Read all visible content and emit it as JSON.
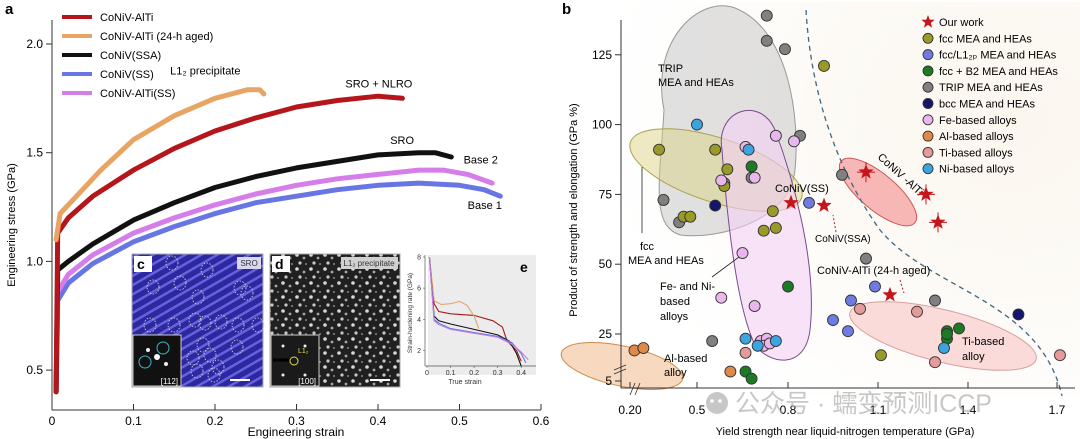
{
  "chart_data": [
    {
      "panel": "a",
      "type": "line",
      "xlabel": "Engineering strain",
      "ylabel": "Engineering stress (GPa)",
      "xlim": [
        0,
        0.6
      ],
      "ylim": [
        0.4,
        2.2
      ],
      "xticks": [
        "0",
        "0.1",
        "0.2",
        "0.3",
        "0.4",
        "0.5",
        "0.6"
      ],
      "yticks": [
        "0.5",
        "1.0",
        "1.5",
        "2.0"
      ],
      "legend_position": "top-left",
      "series": [
        {
          "name": "CoNiV-AlTi",
          "color": "#b5161b",
          "points": [
            [
              0.005,
              0.4
            ],
            [
              0.007,
              1.13
            ],
            [
              0.02,
              1.2
            ],
            [
              0.05,
              1.3
            ],
            [
              0.1,
              1.42
            ],
            [
              0.15,
              1.52
            ],
            [
              0.2,
              1.6
            ],
            [
              0.25,
              1.66
            ],
            [
              0.3,
              1.71
            ],
            [
              0.35,
              1.74
            ],
            [
              0.4,
              1.76
            ],
            [
              0.43,
              1.75
            ]
          ],
          "annotation": "SRO + NLRO"
        },
        {
          "name": "CoNiV-AlTi (24-h aged)",
          "color": "#e8a462",
          "points": [
            [
              0.005,
              1.1
            ],
            [
              0.01,
              1.22
            ],
            [
              0.03,
              1.3
            ],
            [
              0.06,
              1.42
            ],
            [
              0.1,
              1.56
            ],
            [
              0.15,
              1.67
            ],
            [
              0.2,
              1.75
            ],
            [
              0.24,
              1.79
            ],
            [
              0.255,
              1.79
            ],
            [
              0.26,
              1.77
            ]
          ],
          "annotation": "L1₂ precipitate"
        },
        {
          "name": "CoNiV(SSA)",
          "color": "#111111",
          "points": [
            [
              0.005,
              0.4
            ],
            [
              0.007,
              0.96
            ],
            [
              0.02,
              1.0
            ],
            [
              0.05,
              1.08
            ],
            [
              0.1,
              1.19
            ],
            [
              0.15,
              1.27
            ],
            [
              0.2,
              1.34
            ],
            [
              0.25,
              1.39
            ],
            [
              0.3,
              1.43
            ],
            [
              0.35,
              1.46
            ],
            [
              0.4,
              1.49
            ],
            [
              0.45,
              1.5
            ],
            [
              0.47,
              1.5
            ],
            [
              0.49,
              1.48
            ]
          ],
          "annotation": "SRO"
        },
        {
          "name": "CoNiV(SS)",
          "color": "#6776e3",
          "points": [
            [
              0.005,
              0.4
            ],
            [
              0.007,
              0.82
            ],
            [
              0.02,
              0.9
            ],
            [
              0.05,
              0.99
            ],
            [
              0.1,
              1.09
            ],
            [
              0.15,
              1.16
            ],
            [
              0.2,
              1.22
            ],
            [
              0.25,
              1.27
            ],
            [
              0.3,
              1.3
            ],
            [
              0.35,
              1.33
            ],
            [
              0.4,
              1.35
            ],
            [
              0.45,
              1.36
            ],
            [
              0.5,
              1.35
            ],
            [
              0.53,
              1.33
            ],
            [
              0.55,
              1.3
            ]
          ],
          "annotation": "Base 1"
        },
        {
          "name": "CoNiV-AlTi(SS)",
          "color": "#d57de8",
          "points": [
            [
              0.005,
              0.4
            ],
            [
              0.007,
              0.86
            ],
            [
              0.02,
              0.94
            ],
            [
              0.05,
              1.03
            ],
            [
              0.1,
              1.13
            ],
            [
              0.15,
              1.2
            ],
            [
              0.2,
              1.26
            ],
            [
              0.25,
              1.31
            ],
            [
              0.3,
              1.35
            ],
            [
              0.35,
              1.38
            ],
            [
              0.4,
              1.4
            ],
            [
              0.45,
              1.42
            ],
            [
              0.48,
              1.42
            ],
            [
              0.51,
              1.4
            ],
            [
              0.54,
              1.36
            ]
          ],
          "annotation": "Base 2"
        }
      ]
    },
    {
      "panel": "e",
      "type": "line",
      "xlabel": "True strain",
      "ylabel": "Strain-hardening rate (GPa)",
      "xlim": [
        0,
        0.45
      ],
      "ylim": [
        1,
        8
      ],
      "xticks": [
        "0",
        "0.1",
        "0.2",
        "0.3",
        "0.4"
      ],
      "yticks": [
        "2",
        "4",
        "6",
        "8"
      ],
      "series": [
        {
          "name": "CoNiV-AlTi",
          "color": "#a31a1a",
          "points": [
            [
              0.01,
              8
            ],
            [
              0.03,
              5
            ],
            [
              0.05,
              4.5
            ],
            [
              0.1,
              4.35
            ],
            [
              0.2,
              4.25
            ],
            [
              0.28,
              3.9
            ],
            [
              0.32,
              3.5
            ],
            [
              0.34,
              2.6
            ],
            [
              0.38,
              2.0
            ],
            [
              0.4,
              1.3
            ]
          ]
        },
        {
          "name": "CoNiV-AlTi (24-h aged)",
          "color": "#e3a46e",
          "points": [
            [
              0.01,
              8
            ],
            [
              0.03,
              5.2
            ],
            [
              0.06,
              4.95
            ],
            [
              0.1,
              5.0
            ],
            [
              0.14,
              5.15
            ],
            [
              0.17,
              4.9
            ],
            [
              0.2,
              4.2
            ],
            [
              0.22,
              3.4
            ]
          ]
        },
        {
          "name": "CoNiV(SSA)",
          "color": "#111111",
          "points": [
            [
              0.01,
              8
            ],
            [
              0.03,
              4.2
            ],
            [
              0.05,
              3.9
            ],
            [
              0.1,
              3.7
            ],
            [
              0.2,
              3.35
            ],
            [
              0.3,
              3.0
            ],
            [
              0.35,
              2.6
            ],
            [
              0.38,
              1.8
            ],
            [
              0.4,
              1.0
            ]
          ]
        },
        {
          "name": "CoNiV(SS)",
          "color": "#6776e3",
          "points": [
            [
              0.01,
              8
            ],
            [
              0.03,
              4.0
            ],
            [
              0.05,
              3.75
            ],
            [
              0.1,
              3.4
            ],
            [
              0.2,
              3.15
            ],
            [
              0.3,
              2.9
            ],
            [
              0.36,
              2.5
            ],
            [
              0.4,
              1.8
            ],
            [
              0.42,
              1.2
            ]
          ]
        },
        {
          "name": "CoNiV-AlTi(SS)",
          "color": "#c27ddf",
          "points": [
            [
              0.01,
              8
            ],
            [
              0.03,
              3.9
            ],
            [
              0.05,
              3.65
            ],
            [
              0.1,
              3.35
            ],
            [
              0.2,
              3.1
            ],
            [
              0.3,
              2.85
            ],
            [
              0.36,
              2.4
            ],
            [
              0.4,
              1.9
            ],
            [
              0.43,
              1.4
            ]
          ]
        }
      ]
    },
    {
      "panel": "b",
      "type": "scatter",
      "xlabel": "Yield strength near liquid-nitrogen temperature (GPa)",
      "ylabel": "Product of strength and elongation (GPa %)",
      "xticks": [
        "0.20",
        "0.5",
        "0.8",
        "1.1",
        "1.4",
        "1.7"
      ],
      "yticks": [
        "5",
        "25",
        "50",
        "75",
        "100",
        "125"
      ],
      "xlim": [
        0.2,
        1.75
      ],
      "ylim": [
        0,
        140
      ],
      "legend_position": "top-right",
      "legend": [
        {
          "label": "Our work",
          "marker": "star",
          "color": "#c4161c"
        },
        {
          "label": "fcc MEA and HEAs",
          "marker": "circle",
          "color": "#9a9a28"
        },
        {
          "label": "fcc/L1₂ₚ MEA and HEAs",
          "marker": "circle",
          "color": "#6f7be0"
        },
        {
          "label": "fcc + B2 MEA and HEAs",
          "marker": "circle",
          "color": "#1d7a24"
        },
        {
          "label": "TRIP MEA and HEAs",
          "marker": "circle",
          "color": "#808080"
        },
        {
          "label": "bcc MEA and HEAs",
          "marker": "circle",
          "color": "#14166e"
        },
        {
          "label": "Fe-based alloys",
          "marker": "circle",
          "color": "#e9b7ee"
        },
        {
          "label": "Al-based alloys",
          "marker": "circle",
          "color": "#e08a4a"
        },
        {
          "label": "Ti-based alloys",
          "marker": "circle",
          "color": "#e59a9a"
        },
        {
          "label": "Ni-based alloys",
          "marker": "circle",
          "color": "#3aa5e0"
        }
      ],
      "region_labels": [
        "TRIP\nMEA and HEAs",
        "fcc\nMEA and HEAs",
        "Fe- and Ni-\nbased\nalloys",
        "Al-based\nalloy",
        "Ti-based\nalloy"
      ],
      "annotations": [
        "CoNiV(SS)",
        "CoNiV(SSA)",
        "CoNiV-AlTi (24-h aged)",
        "CoNiV -AlTi"
      ],
      "points": [
        {
          "group": "Our work",
          "x": 0.81,
          "y": 72,
          "marker": "star"
        },
        {
          "group": "Our work",
          "x": 0.92,
          "y": 71,
          "marker": "star"
        },
        {
          "group": "Our work",
          "x": 1.06,
          "y": 83,
          "marker": "star",
          "errorbar": true
        },
        {
          "group": "Our work",
          "x": 1.26,
          "y": 75,
          "marker": "star",
          "errorbar": true
        },
        {
          "group": "Our work",
          "x": 1.3,
          "y": 65,
          "marker": "star",
          "errorbar": true
        },
        {
          "group": "Our work",
          "x": 1.14,
          "y": 39,
          "marker": "star"
        },
        {
          "group": "TRIP MEA and HEAs",
          "x": 0.73,
          "y": 139
        },
        {
          "group": "TRIP MEA and HEAs",
          "x": 0.73,
          "y": 130
        },
        {
          "group": "TRIP MEA and HEAs",
          "x": 0.79,
          "y": 127
        },
        {
          "group": "TRIP MEA and HEAs",
          "x": 0.84,
          "y": 96
        },
        {
          "group": "TRIP MEA and HEAs",
          "x": 0.35,
          "y": 73
        },
        {
          "group": "TRIP MEA and HEAs",
          "x": 0.42,
          "y": 65
        },
        {
          "group": "TRIP MEA and HEAs",
          "x": 0.68,
          "y": 81
        },
        {
          "group": "TRIP MEA and HEAs",
          "x": 0.59,
          "y": 79
        },
        {
          "group": "TRIP MEA and HEAs",
          "x": 0.98,
          "y": 82
        },
        {
          "group": "TRIP MEA and HEAs",
          "x": 0.55,
          "y": 22
        },
        {
          "group": "TRIP MEA and HEAs",
          "x": 1.06,
          "y": 52
        },
        {
          "group": "TRIP MEA and HEAs",
          "x": 1.29,
          "y": 37
        },
        {
          "group": "fcc MEA and HEAs",
          "x": 0.92,
          "y": 121
        },
        {
          "group": "fcc MEA and HEAs",
          "x": 0.33,
          "y": 91
        },
        {
          "group": "fcc MEA and HEAs",
          "x": 0.56,
          "y": 91
        },
        {
          "group": "fcc MEA and HEAs",
          "x": 0.6,
          "y": 84
        },
        {
          "group": "fcc MEA and HEAs",
          "x": 0.59,
          "y": 78
        },
        {
          "group": "fcc MEA and HEAs",
          "x": 0.44,
          "y": 67
        },
        {
          "group": "fcc MEA and HEAs",
          "x": 0.47,
          "y": 67
        },
        {
          "group": "fcc MEA and HEAs",
          "x": 0.75,
          "y": 69
        },
        {
          "group": "fcc MEA and HEAs",
          "x": 0.72,
          "y": 62
        },
        {
          "group": "fcc MEA and HEAs",
          "x": 0.76,
          "y": 63
        },
        {
          "group": "fcc MEA and HEAs",
          "x": 1.11,
          "y": 16
        },
        {
          "group": "fcc/L1₂ₚ MEA and HEAs",
          "x": 0.87,
          "y": 72
        },
        {
          "group": "fcc/L1₂ₚ MEA and HEAs",
          "x": 1.01,
          "y": 37
        },
        {
          "group": "fcc/L1₂ₚ MEA and HEAs",
          "x": 0.95,
          "y": 30
        },
        {
          "group": "fcc/L1₂ₚ MEA and HEAs",
          "x": 1.09,
          "y": 42
        },
        {
          "group": "fcc/L1₂ₚ MEA and HEAs",
          "x": 1.0,
          "y": 26
        },
        {
          "group": "fcc + B2 MEA and HEAs",
          "x": 0.68,
          "y": 85
        },
        {
          "group": "fcc + B2 MEA and HEAs",
          "x": 0.8,
          "y": 42
        },
        {
          "group": "fcc + B2 MEA and HEAs",
          "x": 0.66,
          "y": 9
        },
        {
          "group": "fcc + B2 MEA and HEAs",
          "x": 0.68,
          "y": 6
        },
        {
          "group": "fcc + B2 MEA and HEAs",
          "x": 1.37,
          "y": 27
        },
        {
          "group": "fcc + B2 MEA and HEAs",
          "x": 1.33,
          "y": 26
        },
        {
          "group": "fcc + B2 MEA and HEAs",
          "x": 1.33,
          "y": 23
        },
        {
          "group": "fcc + B2 MEA and HEAs",
          "x": 1.33,
          "y": 25
        },
        {
          "group": "bcc MEA and HEAs",
          "x": 0.56,
          "y": 71
        },
        {
          "group": "bcc MEA and HEAs",
          "x": 1.57,
          "y": 32
        },
        {
          "group": "Fe-based alloys",
          "x": 0.66,
          "y": 92
        },
        {
          "group": "Fe-based alloys",
          "x": 0.82,
          "y": 94
        },
        {
          "group": "Fe-based alloys",
          "x": 0.58,
          "y": 80
        },
        {
          "group": "Fe-based alloys",
          "x": 0.69,
          "y": 81
        },
        {
          "group": "Fe-based alloys",
          "x": 0.65,
          "y": 54
        },
        {
          "group": "Fe-based alloys",
          "x": 0.76,
          "y": 96
        },
        {
          "group": "Fe-based alloys",
          "x": 0.58,
          "y": 38
        },
        {
          "group": "Fe-based alloys",
          "x": 0.69,
          "y": 35
        },
        {
          "group": "Fe-based alloys",
          "x": 0.71,
          "y": 22
        },
        {
          "group": "Fe-based alloys",
          "x": 0.73,
          "y": 23
        },
        {
          "group": "Fe-based alloys",
          "x": 0.72,
          "y": 20
        },
        {
          "group": "Fe-based alloys",
          "x": 0.74,
          "y": 21
        },
        {
          "group": "Al-based alloys",
          "x": 0.22,
          "y": 18
        },
        {
          "group": "Al-based alloys",
          "x": 0.26,
          "y": 19
        },
        {
          "group": "Al-based alloys",
          "x": 0.61,
          "y": 9
        },
        {
          "group": "Ti-based alloys",
          "x": 0.66,
          "y": 17
        },
        {
          "group": "Ti-based alloys",
          "x": 1.04,
          "y": 34
        },
        {
          "group": "Ti-based alloys",
          "x": 1.23,
          "y": 33
        },
        {
          "group": "Ti-based alloys",
          "x": 1.29,
          "y": 13
        },
        {
          "group": "Ti-based alloys",
          "x": 1.71,
          "y": 16
        },
        {
          "group": "Ni-based alloys",
          "x": 0.5,
          "y": 100
        },
        {
          "group": "Ni-based alloys",
          "x": 0.67,
          "y": 91
        },
        {
          "group": "Ni-based alloys",
          "x": 0.66,
          "y": 23
        },
        {
          "group": "Ni-based alloys",
          "x": 0.7,
          "y": 20
        },
        {
          "group": "Ni-based alloys",
          "x": 0.76,
          "y": 22
        },
        {
          "group": "Ni-based alloys",
          "x": 1.32,
          "y": 19
        }
      ]
    }
  ],
  "panels": {
    "a_label": "a",
    "b_label": "b",
    "c_label": "c",
    "d_label": "d",
    "e_label": "e",
    "c_tag": "SRO",
    "d_tag": "L1₂ precipitate",
    "c_zone": "[112]",
    "d_zone": "[100]",
    "d_spot": "L1₂"
  },
  "watermark": "公众号 · 蠕变预测ICCP"
}
